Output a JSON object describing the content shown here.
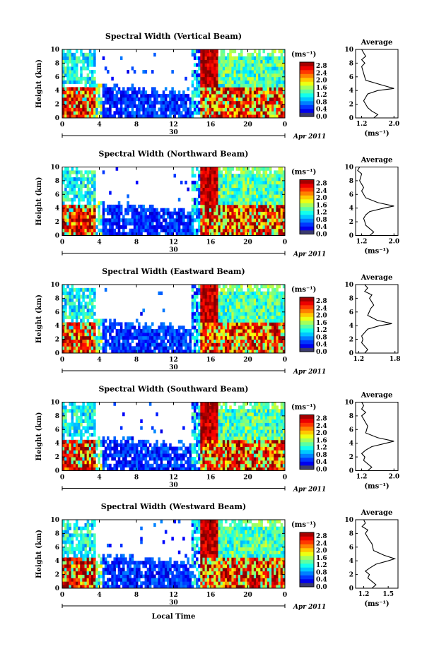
{
  "chart_data": [
    {
      "type": "heatmap",
      "title": "Spectral Width (Vertical Beam)",
      "ylabel": "Height (km)",
      "x_ticks": [
        "0",
        "4",
        "8",
        "12",
        "16",
        "20",
        "0"
      ],
      "y_ticks": [
        "0",
        "2",
        "4",
        "6",
        "8",
        "10"
      ],
      "xlim": [
        0,
        24
      ],
      "ylim": [
        0,
        10
      ],
      "date_day": "30",
      "date_month": "Apr 2011",
      "colorbar": {
        "unit": "(ms⁻¹)",
        "ticks": [
          "0.0",
          "0.4",
          "0.8",
          "1.2",
          "1.6",
          "2.0",
          "2.4",
          "2.8"
        ],
        "range": [
          0,
          3.0
        ]
      },
      "average": {
        "title": "Average",
        "xlabel": "(ms⁻¹)",
        "x_ticks": [
          "1.2",
          "2.0"
        ],
        "xlim": [
          1.05,
          2.1
        ],
        "profile": [
          [
            1.5,
            0
          ],
          [
            1.6,
            0.5
          ],
          [
            1.45,
            1
          ],
          [
            1.35,
            1.5
          ],
          [
            1.3,
            2
          ],
          [
            1.25,
            2.5
          ],
          [
            1.3,
            3
          ],
          [
            1.35,
            3.5
          ],
          [
            1.6,
            4
          ],
          [
            2.0,
            4.3
          ],
          [
            1.7,
            4.8
          ],
          [
            1.3,
            5.5
          ],
          [
            1.25,
            6.5
          ],
          [
            1.2,
            7.5
          ],
          [
            1.28,
            8
          ],
          [
            1.2,
            8.5
          ],
          [
            1.3,
            9
          ],
          [
            1.25,
            9.5
          ],
          [
            1.2,
            10
          ]
        ]
      }
    },
    {
      "type": "heatmap",
      "title": "Spectral Width (Northward Beam)",
      "ylabel": "Height (km)",
      "x_ticks": [
        "0",
        "4",
        "8",
        "12",
        "16",
        "20",
        "0"
      ],
      "y_ticks": [
        "0",
        "2",
        "4",
        "6",
        "8",
        "10"
      ],
      "xlim": [
        0,
        24
      ],
      "ylim": [
        0,
        10
      ],
      "date_day": "30",
      "date_month": "Apr 2011",
      "colorbar": {
        "unit": "(ms⁻¹)",
        "ticks": [
          "0.0",
          "0.4",
          "0.8",
          "1.2",
          "1.6",
          "2.0",
          "2.4",
          "2.8"
        ],
        "range": [
          0,
          3.0
        ]
      },
      "average": {
        "title": "Average",
        "xlabel": "(ms⁻¹)",
        "x_ticks": [
          "1.2",
          "2.0"
        ],
        "xlim": [
          1.05,
          2.1
        ],
        "profile": [
          [
            1.4,
            0
          ],
          [
            1.5,
            0.5
          ],
          [
            1.4,
            1
          ],
          [
            1.3,
            1.5
          ],
          [
            1.28,
            2
          ],
          [
            1.25,
            2.5
          ],
          [
            1.3,
            3
          ],
          [
            1.4,
            3.5
          ],
          [
            1.75,
            4
          ],
          [
            2.0,
            4.3
          ],
          [
            1.6,
            4.8
          ],
          [
            1.3,
            5.5
          ],
          [
            1.2,
            6.5
          ],
          [
            1.25,
            7
          ],
          [
            1.15,
            8
          ],
          [
            1.2,
            9
          ],
          [
            1.1,
            9.5
          ],
          [
            1.15,
            10
          ]
        ]
      }
    },
    {
      "type": "heatmap",
      "title": "Spectral Width (Eastward Beam)",
      "ylabel": "Height (km)",
      "x_ticks": [
        "0",
        "4",
        "8",
        "12",
        "16",
        "20",
        "0"
      ],
      "y_ticks": [
        "0",
        "2",
        "4",
        "6",
        "8",
        "10"
      ],
      "xlim": [
        0,
        24
      ],
      "ylim": [
        0,
        10
      ],
      "date_day": "30",
      "date_month": "Apr 2011",
      "colorbar": {
        "unit": "(ms⁻¹)",
        "ticks": [
          "0.0",
          "0.4",
          "0.8",
          "1.2",
          "1.6",
          "2.0",
          "2.4",
          "2.8"
        ],
        "range": [
          0,
          3.0
        ]
      },
      "average": {
        "title": "Average",
        "xlabel": "",
        "x_ticks": [
          "1.2",
          "1.8"
        ],
        "xlim": [
          1.15,
          1.85
        ],
        "profile": [
          [
            1.3,
            0
          ],
          [
            1.35,
            0.5
          ],
          [
            1.3,
            1
          ],
          [
            1.25,
            1.5
          ],
          [
            1.27,
            2
          ],
          [
            1.25,
            2.5
          ],
          [
            1.3,
            3
          ],
          [
            1.35,
            3.5
          ],
          [
            1.55,
            4
          ],
          [
            1.75,
            4.3
          ],
          [
            1.5,
            4.8
          ],
          [
            1.35,
            5.5
          ],
          [
            1.4,
            6.5
          ],
          [
            1.45,
            7
          ],
          [
            1.38,
            8
          ],
          [
            1.42,
            8.5
          ],
          [
            1.3,
            9
          ],
          [
            1.35,
            9.5
          ],
          [
            1.3,
            10
          ]
        ]
      }
    },
    {
      "type": "heatmap",
      "title": "Spectral Width (Southward Beam)",
      "ylabel": "Height (km)",
      "x_ticks": [
        "0",
        "4",
        "8",
        "12",
        "16",
        "20",
        "0"
      ],
      "y_ticks": [
        "0",
        "2",
        "4",
        "6",
        "8",
        "10"
      ],
      "xlim": [
        0,
        24
      ],
      "ylim": [
        0,
        10
      ],
      "date_day": "30",
      "date_month": "Apr 2011",
      "colorbar": {
        "unit": "(ms⁻¹)",
        "ticks": [
          "0.0",
          "0.4",
          "0.8",
          "1.2",
          "1.6",
          "2.0",
          "2.4",
          "2.8"
        ],
        "range": [
          0,
          3.0
        ]
      },
      "average": {
        "title": "Average",
        "xlabel": "(ms⁻¹)",
        "x_ticks": [
          "1.2",
          "2.0"
        ],
        "xlim": [
          1.05,
          2.1
        ],
        "profile": [
          [
            1.35,
            0
          ],
          [
            1.45,
            0.5
          ],
          [
            1.35,
            1
          ],
          [
            1.25,
            1.5
          ],
          [
            1.28,
            2
          ],
          [
            1.2,
            2.5
          ],
          [
            1.3,
            3
          ],
          [
            1.45,
            3.5
          ],
          [
            1.8,
            4
          ],
          [
            2.0,
            4.3
          ],
          [
            1.6,
            4.8
          ],
          [
            1.3,
            5.5
          ],
          [
            1.35,
            6.5
          ],
          [
            1.3,
            7
          ],
          [
            1.2,
            8
          ],
          [
            1.3,
            8.5
          ],
          [
            1.2,
            9
          ],
          [
            1.25,
            9.5
          ],
          [
            1.2,
            10
          ]
        ]
      }
    },
    {
      "type": "heatmap",
      "title": "Spectral Width (Westward Beam)",
      "ylabel": "Height (km)",
      "xlabel": "Local Time",
      "x_ticks": [
        "0",
        "4",
        "8",
        "12",
        "16",
        "20",
        "0"
      ],
      "y_ticks": [
        "0",
        "2",
        "4",
        "6",
        "8",
        "10"
      ],
      "xlim": [
        0,
        24
      ],
      "ylim": [
        0,
        10
      ],
      "date_day": "30",
      "date_month": "Apr 2011",
      "colorbar": {
        "unit": "(ms⁻¹)",
        "ticks": [
          "0.0",
          "0.4",
          "0.8",
          "1.2",
          "1.6",
          "2.0",
          "2.4",
          "2.8"
        ],
        "range": [
          0,
          3.0
        ]
      },
      "average": {
        "title": "Average",
        "xlabel": "(ms⁻¹)",
        "x_ticks": [
          "1.2",
          "1.5"
        ],
        "xlim": [
          1.1,
          1.62
        ],
        "profile": [
          [
            1.3,
            0
          ],
          [
            1.35,
            0.5
          ],
          [
            1.3,
            1
          ],
          [
            1.25,
            1.5
          ],
          [
            1.27,
            2
          ],
          [
            1.22,
            2.5
          ],
          [
            1.28,
            3
          ],
          [
            1.35,
            3.5
          ],
          [
            1.5,
            4
          ],
          [
            1.58,
            4.3
          ],
          [
            1.45,
            4.8
          ],
          [
            1.32,
            5.5
          ],
          [
            1.3,
            6.5
          ],
          [
            1.27,
            7
          ],
          [
            1.22,
            8
          ],
          [
            1.25,
            8.5
          ],
          [
            1.18,
            9
          ],
          [
            1.22,
            9.5
          ],
          [
            1.2,
            10
          ]
        ]
      }
    }
  ]
}
